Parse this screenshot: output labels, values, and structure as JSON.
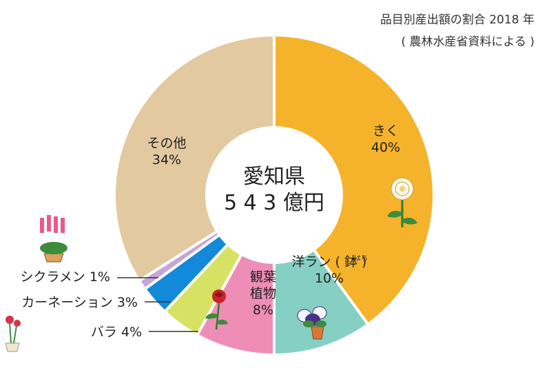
{
  "source_note": {
    "line1": "品目別産出額の割合 2018 年",
    "line2": "( 農林水産省資料による )"
  },
  "center_label": {
    "line1": "愛知県",
    "line2": "5 4 3 億円"
  },
  "ruby_hachi": "はち",
  "colors": {
    "kiku": "#F5B32B",
    "yoran": "#86CFC3",
    "kanyo": "#EE8EB6",
    "bara": "#D7E265",
    "carnation": "#1289D9",
    "cyclamen": "#C4A7D6",
    "sonota": "#E3C9A0",
    "center": "#ffffff",
    "leader": "#333333"
  },
  "chart_data": {
    "type": "pie",
    "style": "donut",
    "start_angle_deg": 0,
    "direction": "clockwise",
    "slices": [
      {
        "key": "kiku",
        "label_lines": [
          "きく",
          "40%"
        ],
        "value": 40,
        "color": "#F5B32B",
        "label_inside": true,
        "icon": "chrysanthemum-icon"
      },
      {
        "key": "yoran",
        "label_lines": [
          "洋ラン ( 鉢 )",
          "10%"
        ],
        "value": 10,
        "color": "#86CFC3",
        "label_inside": true,
        "icon": "pansy-pot-icon"
      },
      {
        "key": "kanyo",
        "label_lines": [
          "観葉",
          "植物",
          "8%"
        ],
        "value": 8,
        "color": "#EE8EB6",
        "label_inside": true,
        "icon": ""
      },
      {
        "key": "bara",
        "label_lines": [
          "バラ 4%"
        ],
        "value": 4,
        "color": "#D7E265",
        "label_inside": false,
        "icon": "rose-icon"
      },
      {
        "key": "carnation",
        "label_lines": [
          "カーネーション 3%"
        ],
        "value": 3,
        "color": "#1289D9",
        "label_inside": false,
        "icon": "carnation-icon"
      },
      {
        "key": "cyclamen",
        "label_lines": [
          "シクラメン 1%"
        ],
        "value": 1,
        "color": "#C4A7D6",
        "label_inside": false,
        "icon": "cyclamen-icon"
      },
      {
        "key": "sonota",
        "label_lines": [
          "その他",
          "34%"
        ],
        "value": 34,
        "color": "#E3C9A0",
        "label_inside": true,
        "icon": ""
      }
    ]
  }
}
